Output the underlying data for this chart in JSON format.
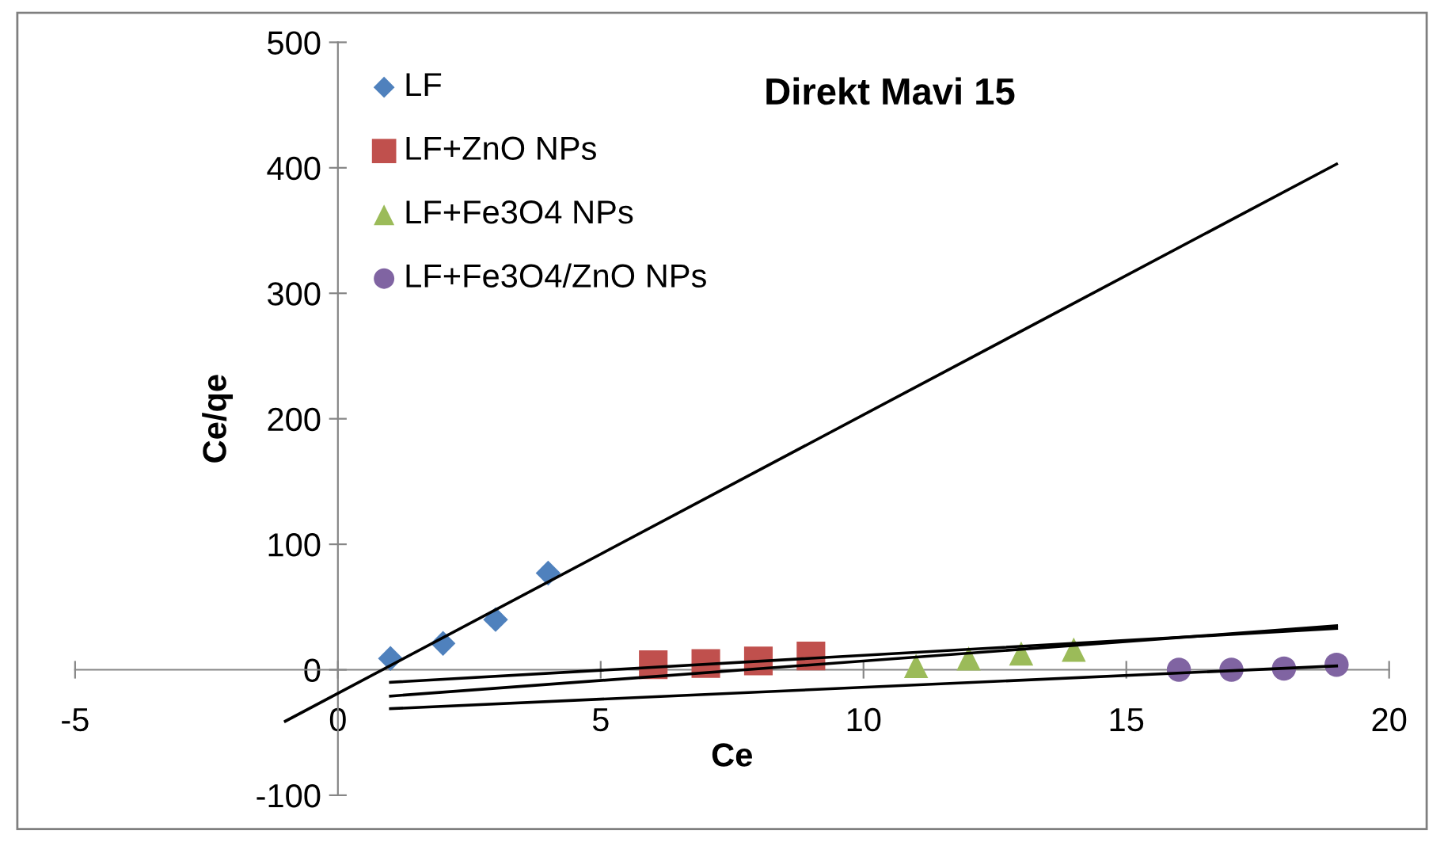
{
  "chart_data": {
    "type": "scatter",
    "title": "Direkt Mavi 15",
    "xlabel": "Ce",
    "ylabel": "Ce/qe",
    "xlim": [
      -5,
      20
    ],
    "ylim": [
      -100,
      500
    ],
    "xticks": [
      -5,
      0,
      5,
      10,
      15,
      20
    ],
    "yticks": [
      -100,
      0,
      100,
      200,
      300,
      400,
      500
    ],
    "grid": false,
    "legend": "top left",
    "series": [
      {
        "name": "LF",
        "color": "#4f81bd",
        "marker": "diamond",
        "x": [
          1,
          2,
          3,
          4
        ],
        "values": [
          9,
          21,
          40,
          77
        ]
      },
      {
        "name": "LF+ZnO NPs",
        "color": "#c0504d",
        "marker": "square",
        "x": [
          6,
          7,
          8,
          9
        ],
        "values": [
          4,
          5,
          7,
          11
        ]
      },
      {
        "name": "LF+Fe3O4 NPs",
        "color": "#9bbb59",
        "marker": "triangle",
        "x": [
          11,
          12,
          13,
          14
        ],
        "values": [
          3,
          9,
          13,
          16
        ]
      },
      {
        "name": "LF+Fe3O4/ZnO NPs",
        "color": "#8064a2",
        "marker": "circle",
        "x": [
          16,
          17,
          18,
          19
        ],
        "values": [
          0,
          0,
          1,
          4
        ]
      },
      {
        "type": "line",
        "color": "#000000",
        "x": [
          -1,
          19
        ],
        "values": [
          -41,
          403
        ]
      },
      {
        "type": "line",
        "color": "#000000",
        "x": [
          1,
          19
        ],
        "values": [
          -10,
          33
        ]
      },
      {
        "type": "line",
        "color": "#000000",
        "x": [
          1,
          19
        ],
        "values": [
          -21,
          35
        ]
      },
      {
        "type": "line",
        "color": "#000000",
        "x": [
          1,
          19
        ],
        "values": [
          -31,
          3
        ]
      }
    ]
  }
}
